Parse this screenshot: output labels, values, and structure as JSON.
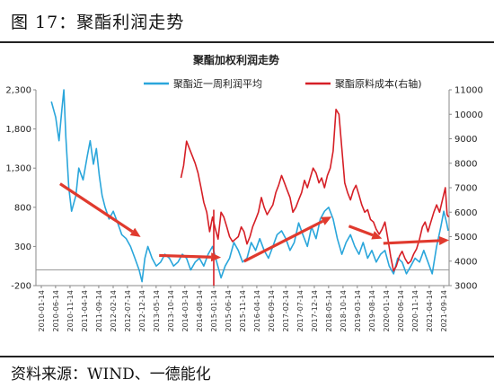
{
  "figure": {
    "title": "图 17：聚酯利润走势",
    "source": "资料来源：WIND、一德能化"
  },
  "colors": {
    "left_series": "#2aa6db",
    "right_series": "#d61f26",
    "arrow": "#e03a2e",
    "axis": "#888888"
  },
  "chart_data": {
    "type": "line",
    "title": "聚酯加权利润走势",
    "ylim_left": [
      -200,
      2300
    ],
    "ylim_right": [
      3000,
      11000
    ],
    "yticks_left": [
      "2,300",
      "1,800",
      "1,300",
      "800",
      "300",
      "-200"
    ],
    "yticks_right": [
      "11000",
      "10000",
      "9000",
      "8000",
      "7000",
      "6000",
      "5000",
      "4000",
      "3000"
    ],
    "x_ticks": [
      "2010-01-14",
      "2010-06-14",
      "2010-11-14",
      "2011-04-14",
      "2011-09-14",
      "2012-02-14",
      "2012-07-14",
      "2012-12-14",
      "2013-05-14",
      "2013-10-14",
      "2014-03-14",
      "2014-08-14",
      "2015-01-14",
      "2015-06-14",
      "2015-11-14",
      "2016-04-14",
      "2016-09-14",
      "2017-02-14",
      "2017-07-14",
      "2017-12-14",
      "2018-05-14",
      "2018-10-14",
      "2019-03-14",
      "2019-08-14",
      "2020-01-14",
      "2020-06-14",
      "2020-11-14",
      "2021-04-14",
      "2021-09-14"
    ],
    "legend_placement": "top",
    "series": [
      {
        "name": "聚酯近一周利润平均",
        "axis": "left",
        "points": [
          [
            "2010-05-01",
            2150
          ],
          [
            "2010-06-15",
            1950
          ],
          [
            "2010-07-20",
            1650
          ],
          [
            "2010-08-20",
            2050
          ],
          [
            "2010-09-10",
            2300
          ],
          [
            "2010-10-01",
            1700
          ],
          [
            "2010-11-01",
            1050
          ],
          [
            "2010-12-01",
            750
          ],
          [
            "2011-01-15",
            950
          ],
          [
            "2011-02-15",
            1300
          ],
          [
            "2011-04-01",
            1150
          ],
          [
            "2011-05-15",
            1450
          ],
          [
            "2011-06-15",
            1650
          ],
          [
            "2011-07-20",
            1350
          ],
          [
            "2011-08-20",
            1550
          ],
          [
            "2011-09-20",
            1200
          ],
          [
            "2011-10-20",
            950
          ],
          [
            "2011-11-20",
            800
          ],
          [
            "2012-01-01",
            650
          ],
          [
            "2012-02-15",
            750
          ],
          [
            "2012-04-01",
            600
          ],
          [
            "2012-05-15",
            450
          ],
          [
            "2012-07-01",
            400
          ],
          [
            "2012-08-15",
            300
          ],
          [
            "2012-10-01",
            150
          ],
          [
            "2012-11-15",
            0
          ],
          [
            "2012-12-15",
            -150
          ],
          [
            "2013-01-15",
            150
          ],
          [
            "2013-02-15",
            300
          ],
          [
            "2013-04-01",
            150
          ],
          [
            "2013-05-15",
            50
          ],
          [
            "2013-07-01",
            100
          ],
          [
            "2013-08-15",
            200
          ],
          [
            "2013-10-01",
            150
          ],
          [
            "2013-11-15",
            50
          ],
          [
            "2014-01-01",
            100
          ],
          [
            "2014-02-15",
            200
          ],
          [
            "2014-04-01",
            150
          ],
          [
            "2014-05-15",
            0
          ],
          [
            "2014-07-01",
            100
          ],
          [
            "2014-08-15",
            150
          ],
          [
            "2014-10-01",
            50
          ],
          [
            "2014-11-15",
            200
          ],
          [
            "2015-01-01",
            300
          ],
          [
            "2015-02-15",
            100
          ],
          [
            "2015-04-01",
            -100
          ],
          [
            "2015-05-15",
            50
          ],
          [
            "2015-07-01",
            150
          ],
          [
            "2015-08-15",
            350
          ],
          [
            "2015-10-01",
            250
          ],
          [
            "2015-11-15",
            100
          ],
          [
            "2016-01-01",
            150
          ],
          [
            "2016-02-15",
            350
          ],
          [
            "2016-04-01",
            250
          ],
          [
            "2016-05-15",
            400
          ],
          [
            "2016-07-01",
            250
          ],
          [
            "2016-08-15",
            150
          ],
          [
            "2016-10-01",
            300
          ],
          [
            "2016-11-15",
            450
          ],
          [
            "2017-01-01",
            500
          ],
          [
            "2017-02-15",
            400
          ],
          [
            "2017-04-01",
            250
          ],
          [
            "2017-05-15",
            350
          ],
          [
            "2017-07-01",
            600
          ],
          [
            "2017-08-15",
            450
          ],
          [
            "2017-10-01",
            300
          ],
          [
            "2017-11-15",
            550
          ],
          [
            "2018-01-01",
            400
          ],
          [
            "2018-02-15",
            650
          ],
          [
            "2018-04-01",
            750
          ],
          [
            "2018-05-15",
            800
          ],
          [
            "2018-07-01",
            650
          ],
          [
            "2018-08-15",
            400
          ],
          [
            "2018-10-01",
            200
          ],
          [
            "2018-11-15",
            350
          ],
          [
            "2019-01-01",
            450
          ],
          [
            "2019-02-15",
            300
          ],
          [
            "2019-04-01",
            200
          ],
          [
            "2019-05-15",
            350
          ],
          [
            "2019-07-01",
            150
          ],
          [
            "2019-08-15",
            250
          ],
          [
            "2019-10-01",
            100
          ],
          [
            "2019-11-15",
            200
          ],
          [
            "2020-01-01",
            250
          ],
          [
            "2020-02-15",
            50
          ],
          [
            "2020-04-01",
            -50
          ],
          [
            "2020-05-15",
            150
          ],
          [
            "2020-07-01",
            100
          ],
          [
            "2020-08-15",
            -50
          ],
          [
            "2020-10-01",
            50
          ],
          [
            "2020-11-15",
            150
          ],
          [
            "2021-01-01",
            100
          ],
          [
            "2021-02-15",
            250
          ],
          [
            "2021-04-01",
            100
          ],
          [
            "2021-05-15",
            -50
          ],
          [
            "2021-07-01",
            300
          ],
          [
            "2021-08-15",
            550
          ],
          [
            "2021-09-15",
            750
          ],
          [
            "2021-10-15",
            600
          ],
          [
            "2021-11-01",
            500
          ]
        ]
      },
      {
        "name": "聚酯原料成本(右轴)",
        "axis": "right",
        "points": [
          [
            "2014-02-01",
            7400
          ],
          [
            "2014-03-01",
            7900
          ],
          [
            "2014-04-01",
            8900
          ],
          [
            "2014-05-01",
            8600
          ],
          [
            "2014-06-01",
            8300
          ],
          [
            "2014-07-01",
            8000
          ],
          [
            "2014-08-01",
            7600
          ],
          [
            "2014-09-01",
            7000
          ],
          [
            "2014-10-01",
            6400
          ],
          [
            "2014-11-01",
            6000
          ],
          [
            "2014-12-01",
            5200
          ],
          [
            "2015-01-01",
            5800
          ],
          [
            "2015-02-01",
            5300
          ],
          [
            "2015-03-01",
            4900
          ],
          [
            "2015-04-01",
            6000
          ],
          [
            "2015-05-01",
            5800
          ],
          [
            "2015-06-01",
            5400
          ],
          [
            "2015-07-01",
            5000
          ],
          [
            "2015-08-01",
            4800
          ],
          [
            "2015-09-01",
            4900
          ],
          [
            "2015-10-01",
            5000
          ],
          [
            "2015-11-01",
            5400
          ],
          [
            "2015-12-01",
            5200
          ],
          [
            "2016-01-01",
            4700
          ],
          [
            "2016-02-01",
            5000
          ],
          [
            "2016-03-01",
            5400
          ],
          [
            "2016-04-01",
            5700
          ],
          [
            "2016-05-01",
            6000
          ],
          [
            "2016-06-01",
            6600
          ],
          [
            "2016-07-01",
            6200
          ],
          [
            "2016-08-01",
            5900
          ],
          [
            "2016-09-01",
            6100
          ],
          [
            "2016-10-01",
            6300
          ],
          [
            "2016-11-01",
            6800
          ],
          [
            "2016-12-01",
            7100
          ],
          [
            "2017-01-01",
            7500
          ],
          [
            "2017-02-01",
            7200
          ],
          [
            "2017-03-01",
            6900
          ],
          [
            "2017-04-01",
            6600
          ],
          [
            "2017-05-01",
            6000
          ],
          [
            "2017-06-01",
            6200
          ],
          [
            "2017-07-01",
            6500
          ],
          [
            "2017-08-01",
            6800
          ],
          [
            "2017-09-01",
            7300
          ],
          [
            "2017-10-01",
            7000
          ],
          [
            "2017-11-01",
            7400
          ],
          [
            "2017-12-01",
            7800
          ],
          [
            "2018-01-01",
            7600
          ],
          [
            "2018-02-01",
            7200
          ],
          [
            "2018-03-01",
            7400
          ],
          [
            "2018-04-01",
            7000
          ],
          [
            "2018-05-01",
            7500
          ],
          [
            "2018-06-01",
            7800
          ],
          [
            "2018-07-01",
            8500
          ],
          [
            "2018-08-01",
            10200
          ],
          [
            "2018-09-01",
            10000
          ],
          [
            "2018-10-01",
            8600
          ],
          [
            "2018-11-01",
            7200
          ],
          [
            "2018-12-01",
            6800
          ],
          [
            "2019-01-01",
            6500
          ],
          [
            "2019-02-01",
            6900
          ],
          [
            "2019-03-01",
            7100
          ],
          [
            "2019-04-01",
            6700
          ],
          [
            "2019-05-01",
            6300
          ],
          [
            "2019-06-01",
            6000
          ],
          [
            "2019-07-01",
            6100
          ],
          [
            "2019-08-01",
            5700
          ],
          [
            "2019-09-01",
            5600
          ],
          [
            "2019-10-01",
            5300
          ],
          [
            "2019-11-01",
            5100
          ],
          [
            "2019-12-01",
            5300
          ],
          [
            "2020-01-01",
            5600
          ],
          [
            "2020-02-01",
            4900
          ],
          [
            "2020-03-01",
            4200
          ],
          [
            "2020-04-01",
            3600
          ],
          [
            "2020-05-01",
            3800
          ],
          [
            "2020-06-01",
            4200
          ],
          [
            "2020-07-01",
            4400
          ],
          [
            "2020-08-01",
            4100
          ],
          [
            "2020-09-01",
            3900
          ],
          [
            "2020-10-01",
            4000
          ],
          [
            "2020-11-01",
            4300
          ],
          [
            "2020-12-01",
            4500
          ],
          [
            "2021-01-01",
            4900
          ],
          [
            "2021-02-01",
            5400
          ],
          [
            "2021-03-01",
            5600
          ],
          [
            "2021-04-01",
            5200
          ],
          [
            "2021-05-01",
            5600
          ],
          [
            "2021-06-01",
            6000
          ],
          [
            "2021-07-01",
            6300
          ],
          [
            "2021-08-01",
            6000
          ],
          [
            "2021-09-01",
            6500
          ],
          [
            "2021-10-01",
            7000
          ],
          [
            "2021-10-20",
            5900
          ],
          [
            "2021-11-05",
            5800
          ]
        ]
      }
    ],
    "trend_arrows": [
      {
        "from": [
          "2010-08-01",
          1100
        ],
        "to": [
          "2012-12-01",
          420
        ],
        "axis": "left"
      },
      {
        "from": [
          "2013-06-15",
          185
        ],
        "to": [
          "2015-04-01",
          160
        ],
        "axis": "left"
      },
      {
        "from": [
          "2015-12-01",
          110
        ],
        "to": [
          "2018-06-15",
          680
        ],
        "axis": "left"
      },
      {
        "from": [
          "2018-12-15",
          560
        ],
        "to": [
          "2019-12-01",
          400
        ],
        "axis": "left"
      },
      {
        "from": [
          "2019-12-15",
          340
        ],
        "to": [
          "2021-11-10",
          380
        ],
        "axis": "left"
      }
    ],
    "marker_line": {
      "x": "2015-01-14"
    }
  }
}
